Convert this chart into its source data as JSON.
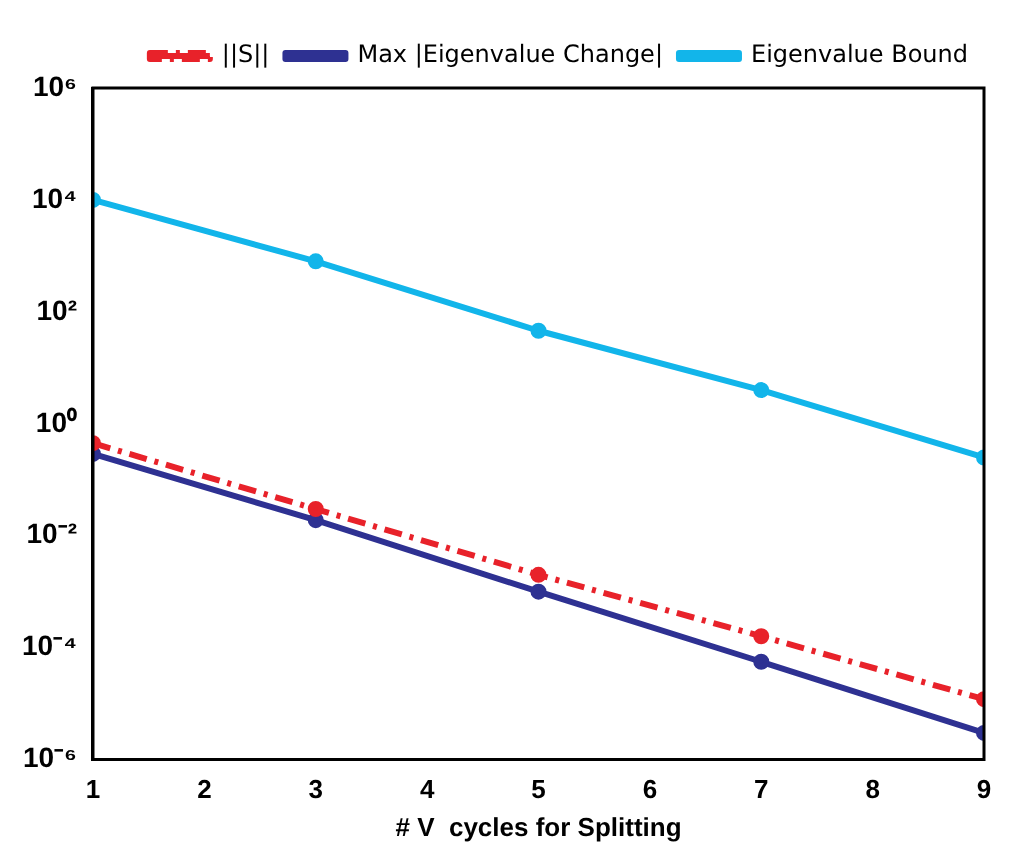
{
  "chart_data": {
    "type": "line",
    "xlabel": "# V  cycles for Splitting",
    "x": [
      1,
      3,
      5,
      7,
      9
    ],
    "series": [
      {
        "name": "||S||",
        "color": "#e8222a",
        "line_style": "dashed",
        "values": [
          0.45,
          0.03,
          0.002,
          0.00016,
          1.2e-05
        ]
      },
      {
        "name": "Max |Eigenvalue Change|",
        "color": "#2e3192",
        "line_style": "solid",
        "values": [
          0.29,
          0.019,
          0.001,
          5.6e-05,
          3e-06
        ]
      },
      {
        "name": "Eigenvalue Bound",
        "color": "#12b5ea",
        "line_style": "solid",
        "values": [
          10000,
          800,
          46,
          4,
          0.25
        ]
      }
    ],
    "log": "y",
    "marker": "circle",
    "grid": false,
    "legend": "top right",
    "xlim": [
      1,
      9
    ],
    "xticks": [
      1,
      2,
      3,
      4,
      5,
      6,
      7,
      8,
      9
    ],
    "ylim": [
      1e-06,
      1000000
    ],
    "yticks": [
      {
        "value": 1e-06,
        "label": "10⁻⁶"
      },
      {
        "value": 0.0001,
        "label": "10⁻⁴"
      },
      {
        "value": 0.01,
        "label": "10⁻²"
      },
      {
        "value": 1,
        "label": "10⁰"
      },
      {
        "value": 100,
        "label": "10²"
      },
      {
        "value": 10000,
        "label": "10⁴"
      },
      {
        "value": 1000000,
        "label": "10⁶"
      }
    ]
  }
}
